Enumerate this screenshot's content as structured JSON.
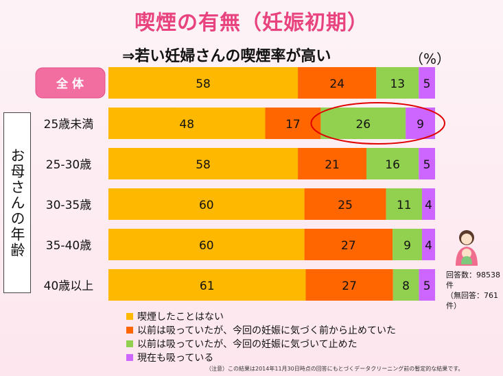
{
  "title": "喫煙の有無（妊娠初期）",
  "subtitle": "⇒若い妊婦さんの喫煙率が高い",
  "unit": "（%）",
  "side_label": "お母さんの年齢",
  "respondents": {
    "count": "回答数：98538件",
    "unanswered": "（無回答：761件）"
  },
  "note": "（注意）この結果は2014年11月30日時点の回答にもとづくデータクリーニング前の暫定的な結果です。",
  "chart_data": {
    "type": "bar",
    "orientation": "horizontal",
    "stacked": true,
    "percent": true,
    "categories": [
      "全 体",
      "25歳未満",
      "25-30歳",
      "30-35歳",
      "35-40歳",
      "40歳以上"
    ],
    "series": [
      {
        "name": "喫煙したことはない",
        "color": "#ffb800",
        "values": [
          58,
          48,
          58,
          60,
          60,
          61
        ]
      },
      {
        "name": "以前は吸っていたが、今回の妊娠に気づく前から止めていた",
        "color": "#ff6600",
        "values": [
          24,
          17,
          21,
          25,
          27,
          27
        ]
      },
      {
        "name": "以前は吸っていたが、今回の妊娠に気づいて止めた",
        "color": "#92d050",
        "values": [
          13,
          26,
          16,
          11,
          9,
          8
        ]
      },
      {
        "name": "現在も吸っている",
        "color": "#cc66ff",
        "values": [
          5,
          9,
          5,
          4,
          4,
          5
        ]
      }
    ],
    "highlight": {
      "category": "25歳未満",
      "series": [
        2,
        3
      ],
      "color": "#e00000"
    }
  }
}
